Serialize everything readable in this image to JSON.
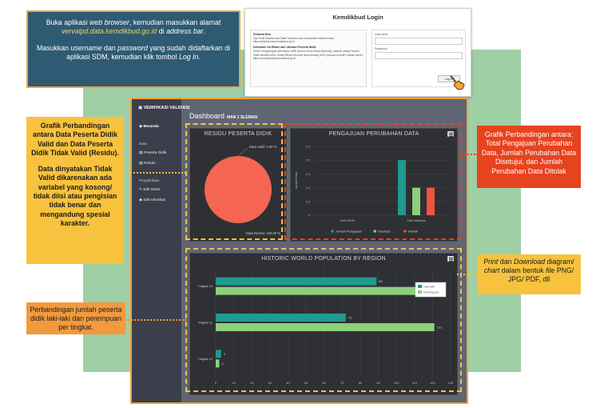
{
  "callouts": {
    "login": {
      "line1_pre": "Buka aplikasi ",
      "line1_em": "web browser",
      "line1_post": ", kemudian masukkan alamat ",
      "url": "vervalpd.data.kemdikbud.go.id",
      "line1_end_pre": " di ",
      "line1_end_em": "address bar",
      "line1_end_post": ".",
      "line2_pre": "Masukkan ",
      "line2_em1": "username",
      "line2_mid": " dan ",
      "line2_em2": "password",
      "line2_post": " yang sudah didaftarkan di aplikasi SDM, kemudian klik tombol ",
      "line2_em3": "Log In",
      "line2_end": "."
    },
    "residu_p1": "Grafik Perbandingan antara Data Peserta Didik Valid dan Data Peserta Didik Tidak Valid (Residu).",
    "residu_p2": "Data dinyatakan Tidak Valid dikarenakan ada variabel yang kosong/ tidak diisi atau pengisian tidak benar dan mengandung spesial karakter.",
    "pengajuan": "Grafik Perbandingan antara: Total Pengajuan Perubahan Data, Jumlah Perubahan Data Disetujui, dan Jumlah Perubahan Data Ditolak",
    "print_pre": "Print",
    "print_mid": " dan ",
    "print_em": "Download",
    "print_post1": " diagram/ ",
    "print_em2": "chart",
    "print_post2": " dalam bentuk ",
    "print_em3": "file",
    "print_post3": " PNG/ JPG/ PDF, dll",
    "gender": "Perbandingan jumlah peserta didik  laki-laki dan perempuan per tingkat."
  },
  "login_panel": {
    "title": "Kemdikbud Login",
    "info_head1": "Selamat Kita",
    "info_text1": "Gsu Profil Sekolah dan Daten Tsauinan dan menanaliard  meadin lemen https://sekolah.data.kemdikbud.go.id",
    "info_head2": "Informasi Verifikasi dan Validasi Peserta Didik",
    "info_text2": "SMUG mengantupan kebutuhan NISN (Nomor Induk Siswa Nasional), pastiran setiap Peserta Didik memiliki NISN. Untuk Pilihan info lebih lanjut tentang NISN (sesuian mandiri) melalui laman: https://vervalpd.data.kemdikbud.go.id",
    "username_label": "Username",
    "password_label": "Password",
    "login_button": "Log In"
  },
  "app": {
    "brand": "VERIFIKASI VALIDASI",
    "title": "Dashboard",
    "subtitle": "MAN 1 SLEMAN",
    "sidebar": [
      {
        "label": "Beranda",
        "icon": "home-icon",
        "type": "item",
        "active": true
      },
      {
        "label": "Data",
        "type": "head"
      },
      {
        "label": "Peserta Didik",
        "icon": "users-icon",
        "type": "item"
      },
      {
        "label": "Residu",
        "icon": "list-icon",
        "type": "item"
      },
      {
        "label": "Pengelolaan",
        "type": "head"
      },
      {
        "label": "Edit NISN",
        "icon": "edit-icon",
        "type": "item"
      },
      {
        "label": "Edit Identitas",
        "icon": "id-icon",
        "type": "item"
      }
    ]
  },
  "chart_data": [
    {
      "type": "pie",
      "title": "RESIDU PESERTA DIDIK",
      "labels": [
        "Data Residu",
        "Data Valid"
      ],
      "values": [
        100.0,
        0.0
      ],
      "annotations": [
        "Data Valid: 0.00 %",
        "Data Residu: 100.00 %"
      ],
      "colors": [
        "#f46552",
        "#7ccb6f"
      ]
    },
    {
      "type": "bar",
      "title": "PENGAJUAN PERUBAHAN DATA",
      "categories": [
        "Edit NISN",
        "Edit Identitas"
      ],
      "series": [
        {
          "name": "Jumlah Pengajuan",
          "values": [
            0,
            2
          ],
          "color": "#1f9a8c"
        },
        {
          "name": "Disetujui",
          "values": [
            0,
            1
          ],
          "color": "#8cd07a"
        },
        {
          "name": "Ditolak",
          "values": [
            0,
            1
          ],
          "color": "#f0543c"
        }
      ],
      "ylabel": "Jumlah Data",
      "ylim": [
        0,
        2.5
      ],
      "yticks": [
        "0",
        "0.5",
        "1.0",
        "1.5",
        "2.0",
        "2.5"
      ]
    },
    {
      "type": "bar",
      "orientation": "horizontal",
      "title": "HISTORIC WORLD POPULATION BY REGION",
      "categories": [
        "Tingkat 10",
        "Tingkat 11",
        "Tingkat 12"
      ],
      "series": [
        {
          "name": "Laki-laki",
          "values": [
            89,
            72,
            3
          ],
          "color": "#1f9a8c"
        },
        {
          "name": "Perempuan",
          "values": [
            121,
            121,
            2
          ],
          "color": "#8cd07a"
        }
      ],
      "xlim": [
        0,
        130
      ],
      "xticks": [
        "0",
        "10",
        "20",
        "30",
        "40",
        "50",
        "60",
        "70",
        "80",
        "90",
        "100",
        "110",
        "120",
        "130"
      ],
      "data_labels": [
        [
          "89",
          "121"
        ],
        [
          "72",
          "121"
        ],
        [
          "3",
          "2"
        ]
      ]
    }
  ]
}
